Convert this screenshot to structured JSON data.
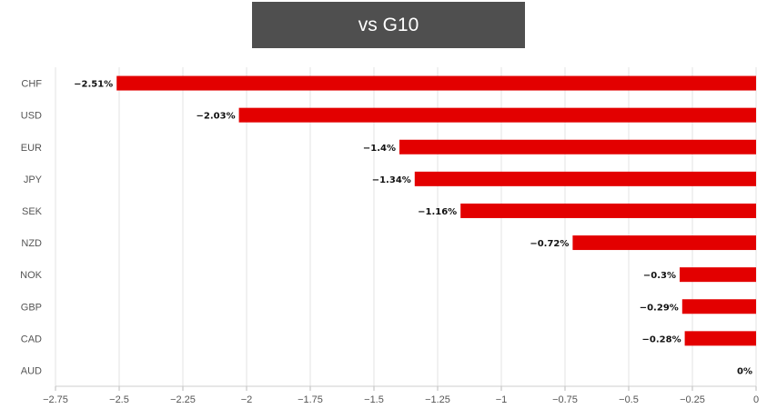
{
  "title": "vs G10",
  "chart_data": {
    "type": "bar",
    "orientation": "horizontal",
    "categories": [
      "CHF",
      "USD",
      "EUR",
      "JPY",
      "SEK",
      "NZD",
      "NOK",
      "GBP",
      "CAD",
      "AUD"
    ],
    "values": [
      -2.51,
      -2.03,
      -1.4,
      -1.34,
      -1.16,
      -0.72,
      -0.3,
      -0.29,
      -0.28,
      0
    ],
    "data_labels": [
      "−2.51%",
      "−2.03%",
      "−1.4%",
      "−1.34%",
      "−1.16%",
      "−0.72%",
      "−0.3%",
      "−0.29%",
      "−0.28%",
      "0%"
    ],
    "x_ticks": [
      -2.75,
      -2.5,
      -2.25,
      -2,
      -1.75,
      -1.5,
      -1.25,
      -1,
      -0.75,
      -0.5,
      -0.25,
      0
    ],
    "x_tick_labels": [
      "−2.75",
      "−2.5",
      "−2.25",
      "−2",
      "−1.75",
      "−1.5",
      "−1.25",
      "−1",
      "−0.75",
      "−0.5",
      "−0.25",
      "0"
    ],
    "xlim": [
      -2.75,
      0
    ],
    "grid": true,
    "bar_color": "#e30000",
    "xlabel": "",
    "ylabel": ""
  }
}
